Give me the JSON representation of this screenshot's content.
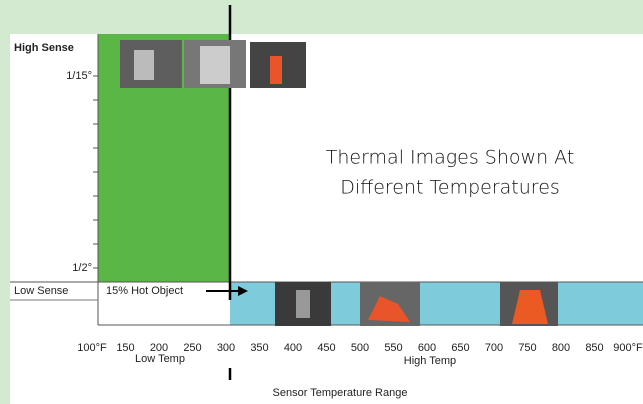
{
  "annotation": {
    "lines": [
      "Thermal Images Shown At",
      "Different Temperatures"
    ]
  },
  "y_axis": {
    "top_label": "High Sense",
    "top_tick": "1/15°",
    "bottom_tick": "1/2°",
    "bottom_label": "Low Sense"
  },
  "hot_object_label": "15% Hot Object",
  "x_axis": {
    "ticks": [
      "100°F",
      "150",
      "200",
      "250",
      "300",
      "350",
      "400",
      "450",
      "500",
      "550",
      "600",
      "650",
      "700",
      "750",
      "800",
      "850",
      "900°F"
    ],
    "low_label": "Low Temp",
    "high_label": "High Temp",
    "title": "Sensor Temperature Range"
  }
}
